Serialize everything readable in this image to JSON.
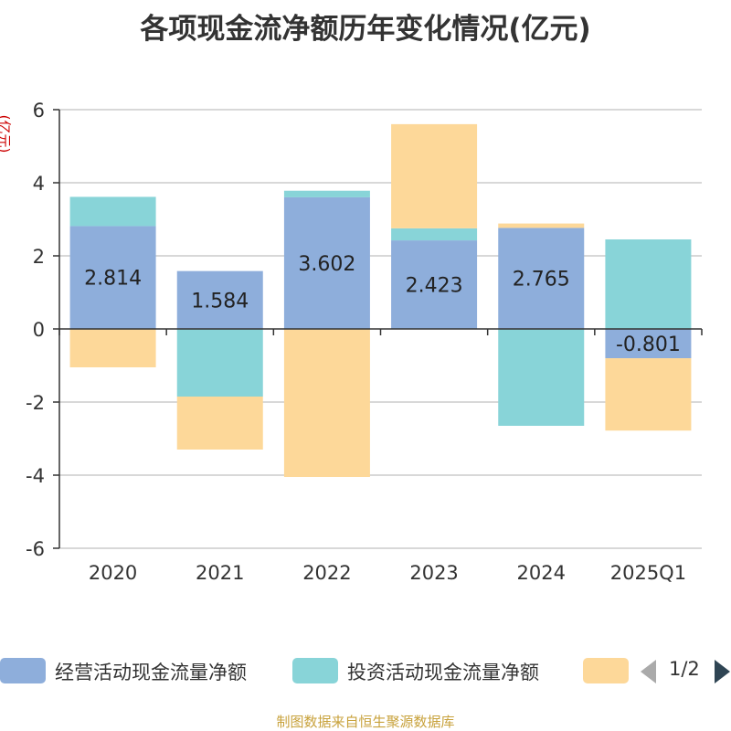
{
  "chart_data": {
    "type": "bar",
    "stacked": true,
    "title": "各项现金流净额历年变化情况(亿元)",
    "ylabel": "(亿元)",
    "categories": [
      "2020",
      "2021",
      "2022",
      "2023",
      "2024",
      "2025Q1"
    ],
    "ylim": [
      -6,
      6
    ],
    "yticks": [
      6,
      4,
      2,
      0,
      -2,
      -4,
      -6
    ],
    "series": [
      {
        "name": "经营活动现金流量净额",
        "color": "#8eaedb",
        "values": [
          2.814,
          1.584,
          3.602,
          2.423,
          2.765,
          -0.801
        ]
      },
      {
        "name": "投资活动现金流量净额",
        "color": "#88d4d8",
        "values": [
          0.8,
          -1.85,
          0.18,
          0.33,
          -2.65,
          2.45
        ]
      },
      {
        "name": "",
        "color": "#fdd899",
        "values": [
          -1.05,
          -1.45,
          -4.05,
          2.85,
          0.12,
          -1.98
        ]
      }
    ],
    "data_labels": [
      "2.814",
      "1.584",
      "3.602",
      "2.423",
      "2.765",
      "-0.801"
    ]
  },
  "legend": {
    "items": [
      {
        "label": "经营活动现金流量净额",
        "color": "#8eaedb"
      },
      {
        "label": "投资活动现金流量净额",
        "color": "#88d4d8"
      },
      {
        "label": "",
        "color": "#fdd899"
      }
    ],
    "pager_text": "1/2"
  },
  "source_note": "制图数据来自恒生聚源数据库"
}
